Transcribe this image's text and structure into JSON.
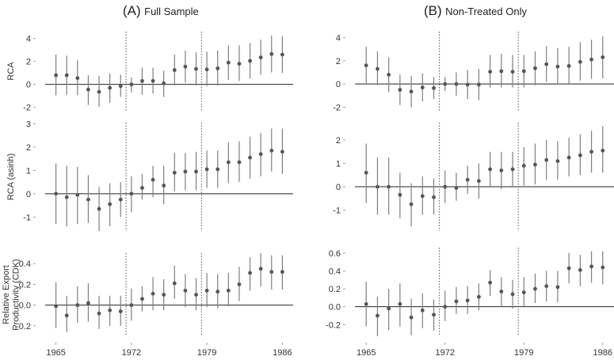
{
  "columns": [
    {
      "letter": "(A)",
      "name": "Full Sample"
    },
    {
      "letter": "(B)",
      "name": "Non-Treated Only"
    }
  ],
  "colors": {
    "point": "#555555",
    "errorbar": "#7f7f7f",
    "zero_line": "#222222",
    "vline": "#555555"
  },
  "chart_data": [
    {
      "type": "scatter",
      "panel": "A1",
      "ylabel": "RCA",
      "x": [
        1965,
        1966,
        1967,
        1968,
        1969,
        1970,
        1971,
        1972,
        1973,
        1974,
        1975,
        1976,
        1977,
        1978,
        1979,
        1980,
        1981,
        1982,
        1983,
        1984,
        1985,
        1986
      ],
      "y": [
        0.8,
        0.8,
        0.55,
        -0.45,
        -0.65,
        -0.3,
        -0.15,
        0.0,
        0.3,
        0.3,
        0.1,
        1.25,
        1.55,
        1.35,
        1.3,
        1.4,
        1.9,
        1.8,
        2.05,
        2.35,
        2.65,
        2.6
      ],
      "lower": [
        -0.95,
        -0.9,
        -0.95,
        -1.8,
        -1.95,
        -1.6,
        -1.1,
        -0.7,
        -0.9,
        -0.8,
        -1.1,
        -0.1,
        0.15,
        -0.1,
        -0.15,
        -0.1,
        0.4,
        0.3,
        0.5,
        0.85,
        1.05,
        1.0
      ],
      "upper": [
        2.6,
        2.5,
        2.1,
        0.8,
        0.75,
        0.95,
        0.85,
        0.6,
        1.45,
        1.45,
        1.2,
        2.6,
        2.95,
        2.8,
        2.85,
        2.95,
        3.4,
        3.4,
        3.6,
        3.9,
        4.25,
        4.2
      ],
      "vlines": [
        1971.5,
        1978.5
      ],
      "xlim": [
        1964,
        1987
      ],
      "ylim": [
        -2.3,
        4.6
      ],
      "yticks": [
        -2,
        0,
        2,
        4
      ],
      "ytick_labels": [
        "-2",
        "0",
        "2",
        "4"
      ]
    },
    {
      "type": "scatter",
      "panel": "A2",
      "ylabel": "RCA (asinh)",
      "x": [
        1965,
        1966,
        1967,
        1968,
        1969,
        1970,
        1971,
        1972,
        1973,
        1974,
        1975,
        1976,
        1977,
        1978,
        1979,
        1980,
        1981,
        1982,
        1983,
        1984,
        1985,
        1986
      ],
      "y": [
        0.0,
        -0.15,
        -0.05,
        -0.25,
        -0.65,
        -0.45,
        -0.25,
        0.0,
        0.25,
        0.6,
        0.35,
        0.9,
        0.95,
        0.95,
        1.05,
        1.05,
        1.35,
        1.35,
        1.55,
        1.7,
        1.85,
        1.8
      ],
      "lower": [
        -1.3,
        -1.4,
        -1.3,
        -1.25,
        -1.6,
        -1.4,
        -1.0,
        -0.8,
        -0.25,
        -0.15,
        -0.45,
        0.1,
        0.15,
        0.15,
        0.25,
        0.25,
        0.45,
        0.5,
        0.65,
        0.75,
        0.95,
        0.85
      ],
      "upper": [
        1.3,
        1.2,
        1.15,
        0.8,
        0.3,
        0.45,
        0.5,
        0.75,
        0.85,
        1.2,
        1.2,
        1.75,
        1.75,
        1.8,
        1.85,
        1.85,
        2.2,
        2.25,
        2.45,
        2.6,
        2.8,
        2.8
      ],
      "vlines": [
        1971.5,
        1978.5
      ],
      "xlim": [
        1964,
        1987
      ],
      "ylim": [
        -1.6,
        3.05
      ],
      "yticks": [
        -1,
        0,
        1,
        2,
        3
      ],
      "ytick_labels": [
        "-1",
        "0",
        "1",
        "2",
        "3"
      ]
    },
    {
      "type": "scatter",
      "panel": "A3",
      "ylabel": "Relative Export Productivity (CDK)",
      "x": [
        1965,
        1966,
        1967,
        1968,
        1969,
        1970,
        1971,
        1972,
        1973,
        1974,
        1975,
        1976,
        1977,
        1978,
        1979,
        1980,
        1981,
        1982,
        1983,
        1984,
        1985,
        1986
      ],
      "y": [
        -0.01,
        -0.1,
        0.0,
        0.02,
        -0.08,
        -0.05,
        -0.06,
        0.0,
        0.06,
        0.11,
        0.1,
        0.21,
        0.14,
        0.1,
        0.14,
        0.13,
        0.14,
        0.2,
        0.31,
        0.35,
        0.32,
        0.32
      ],
      "lower": [
        -0.22,
        -0.26,
        -0.17,
        -0.16,
        -0.23,
        -0.2,
        -0.2,
        -0.15,
        -0.06,
        -0.05,
        -0.05,
        0.06,
        -0.02,
        -0.05,
        -0.02,
        -0.03,
        -0.01,
        0.04,
        0.14,
        0.18,
        0.15,
        0.15
      ],
      "upper": [
        0.22,
        0.09,
        0.18,
        0.21,
        0.09,
        0.09,
        0.09,
        0.16,
        0.18,
        0.27,
        0.25,
        0.38,
        0.3,
        0.26,
        0.31,
        0.3,
        0.31,
        0.37,
        0.46,
        0.5,
        0.48,
        0.48
      ],
      "vlines": [
        1971.5,
        1978.5
      ],
      "xlim": [
        1964,
        1987
      ],
      "ylim": [
        -0.3,
        0.5
      ],
      "yticks": [
        -0.2,
        0.0,
        0.2,
        0.4
      ],
      "ytick_labels": [
        "-0.2",
        "0.0",
        "0.2",
        "0.4"
      ],
      "xticks": [
        1965,
        1972,
        1979,
        1986
      ],
      "xtick_labels": [
        "1965",
        "1972",
        "1979",
        "1986"
      ]
    },
    {
      "type": "scatter",
      "panel": "B1",
      "x": [
        1965,
        1966,
        1967,
        1968,
        1969,
        1970,
        1971,
        1972,
        1973,
        1974,
        1975,
        1976,
        1977,
        1978,
        1979,
        1980,
        1981,
        1982,
        1983,
        1984,
        1985,
        1986
      ],
      "y": [
        1.6,
        1.3,
        0.8,
        -0.5,
        -0.65,
        -0.3,
        -0.35,
        0.0,
        0.0,
        -0.05,
        -0.05,
        1.05,
        1.1,
        1.05,
        1.1,
        1.35,
        1.7,
        1.5,
        1.55,
        1.9,
        2.1,
        2.3
      ],
      "lower": [
        0.0,
        -0.1,
        -0.7,
        -1.8,
        -2.0,
        -1.5,
        -1.3,
        -0.6,
        -1.0,
        -1.3,
        -1.4,
        -0.3,
        -0.3,
        -0.3,
        -0.3,
        -0.1,
        0.2,
        0.0,
        0.0,
        0.3,
        0.45,
        0.5
      ],
      "upper": [
        3.2,
        2.8,
        2.3,
        0.8,
        0.7,
        0.9,
        0.6,
        0.6,
        1.0,
        1.2,
        1.3,
        2.5,
        2.6,
        2.5,
        2.5,
        2.8,
        3.25,
        3.1,
        3.2,
        3.6,
        3.8,
        4.1
      ],
      "vlines": [
        1971.5,
        1978.5
      ],
      "xlim": [
        1964,
        1987
      ],
      "ylim": [
        -2.3,
        4.5
      ],
      "yticks": [
        -2,
        0,
        2,
        4
      ],
      "ytick_labels": [
        "-2",
        "0",
        "2",
        "4"
      ]
    },
    {
      "type": "scatter",
      "panel": "B2",
      "x": [
        1965,
        1966,
        1967,
        1968,
        1969,
        1970,
        1971,
        1972,
        1973,
        1974,
        1975,
        1976,
        1977,
        1978,
        1979,
        1980,
        1981,
        1982,
        1983,
        1984,
        1985,
        1986
      ],
      "y": [
        0.6,
        0.0,
        0.0,
        -0.35,
        -0.75,
        -0.4,
        -0.45,
        0.0,
        -0.05,
        0.3,
        0.25,
        0.75,
        0.7,
        0.75,
        0.9,
        0.95,
        1.15,
        1.1,
        1.25,
        1.35,
        1.5,
        1.55
      ],
      "lower": [
        -0.7,
        -1.2,
        -1.2,
        -1.35,
        -1.7,
        -1.2,
        -1.2,
        -0.7,
        -0.6,
        -0.3,
        -0.5,
        0.0,
        -0.1,
        0.0,
        0.05,
        0.1,
        0.3,
        0.3,
        0.45,
        0.5,
        0.6,
        0.6
      ],
      "upper": [
        1.85,
        1.25,
        1.25,
        0.6,
        0.15,
        0.45,
        0.35,
        0.7,
        0.6,
        0.9,
        1.0,
        1.5,
        1.5,
        1.5,
        1.7,
        1.85,
        2.0,
        1.95,
        2.1,
        2.25,
        2.4,
        2.6
      ],
      "vlines": [
        1971.5,
        1978.5
      ],
      "xlim": [
        1964,
        1987
      ],
      "ylim": [
        -1.9,
        2.75
      ],
      "yticks": [
        -1,
        0,
        1,
        2
      ],
      "ytick_labels": [
        "-1",
        "0",
        "1",
        "2"
      ]
    },
    {
      "type": "scatter",
      "panel": "B3",
      "x": [
        1965,
        1966,
        1967,
        1968,
        1969,
        1970,
        1971,
        1972,
        1973,
        1974,
        1975,
        1976,
        1977,
        1978,
        1979,
        1980,
        1981,
        1982,
        1983,
        1984,
        1985,
        1986
      ],
      "y": [
        0.03,
        -0.1,
        -0.02,
        0.03,
        -0.12,
        -0.04,
        -0.09,
        0.0,
        0.06,
        0.07,
        0.11,
        0.27,
        0.17,
        0.14,
        0.16,
        0.2,
        0.23,
        0.22,
        0.43,
        0.41,
        0.45,
        0.44
      ],
      "lower": [
        -0.22,
        -0.33,
        -0.26,
        -0.22,
        -0.32,
        -0.24,
        -0.27,
        -0.16,
        -0.08,
        -0.08,
        -0.04,
        0.12,
        0.0,
        -0.02,
        0.0,
        0.04,
        0.06,
        0.05,
        0.26,
        0.23,
        0.27,
        0.25
      ],
      "upper": [
        0.28,
        0.11,
        0.2,
        0.26,
        0.09,
        0.15,
        0.08,
        0.18,
        0.22,
        0.23,
        0.26,
        0.41,
        0.33,
        0.3,
        0.33,
        0.37,
        0.4,
        0.4,
        0.6,
        0.58,
        0.62,
        0.62
      ],
      "vlines": [
        1971.5,
        1978.5
      ],
      "xlim": [
        1964,
        1987
      ],
      "ylim": [
        -0.33,
        0.66
      ],
      "yticks": [
        -0.2,
        0.0,
        0.2,
        0.4,
        0.6
      ],
      "ytick_labels": [
        "-0.2",
        "0.0",
        "0.2",
        "0.4",
        "0.6"
      ],
      "xticks": [
        1965,
        1972,
        1979,
        1986
      ],
      "xtick_labels": [
        "1965",
        "1972",
        "1979",
        "1986"
      ]
    }
  ]
}
